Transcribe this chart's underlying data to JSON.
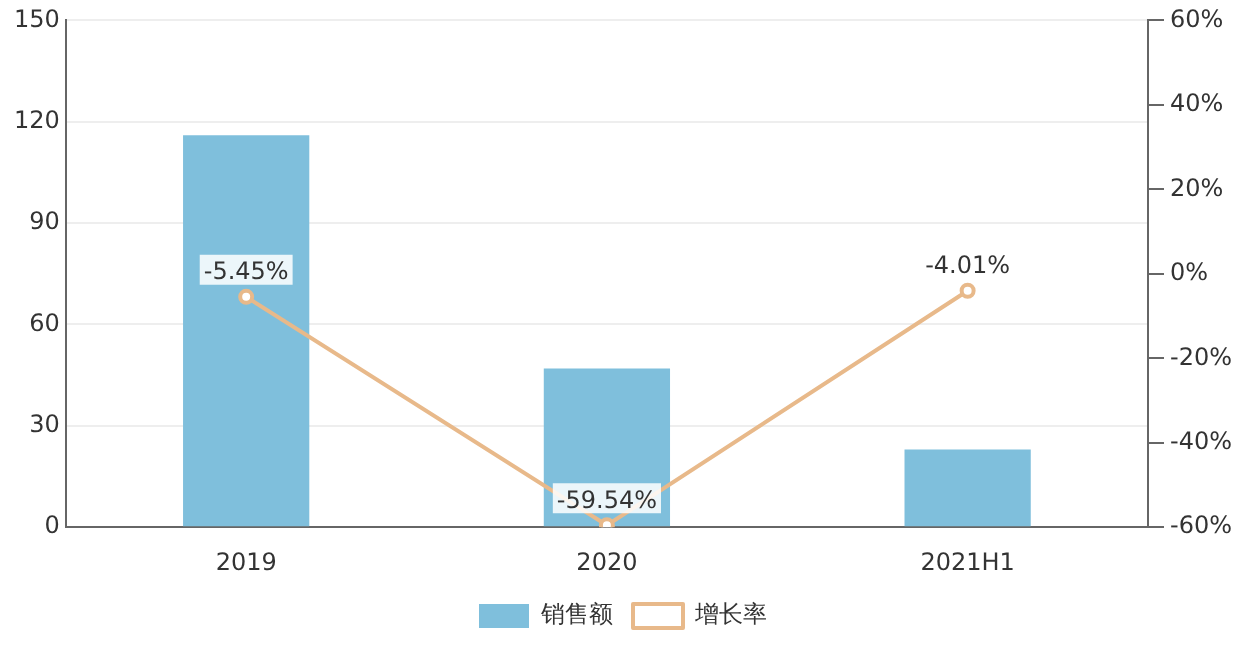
{
  "chart_data": {
    "type": "bar",
    "categories": [
      "2019",
      "2020",
      "2021H1"
    ],
    "series": [
      {
        "name": "销售额",
        "color": "#7fbfdc",
        "values": [
          116,
          47,
          23
        ]
      },
      {
        "name": "增长率",
        "type": "line",
        "axis": "y2",
        "color": "#e8b98a",
        "values": [
          -5.45,
          -59.54,
          -4.01
        ],
        "value_labels": [
          "-5.45%",
          "-59.54%",
          "-4.01%"
        ]
      }
    ],
    "ylim": [
      0,
      150
    ],
    "yticks": [
      0,
      30,
      60,
      90,
      120,
      150
    ],
    "y2lim": [
      -60,
      60
    ],
    "y2ticks": [
      {
        "value": -60,
        "label": "-60%"
      },
      {
        "value": -40,
        "label": "-40%"
      },
      {
        "value": -20,
        "label": "-20%"
      },
      {
        "value": 0,
        "label": "0%"
      },
      {
        "value": 20,
        "label": "20%"
      },
      {
        "value": 40,
        "label": "40%"
      },
      {
        "value": 60,
        "label": "60%"
      }
    ],
    "grid": "y",
    "legend": "bottom",
    "marker": "circle"
  }
}
